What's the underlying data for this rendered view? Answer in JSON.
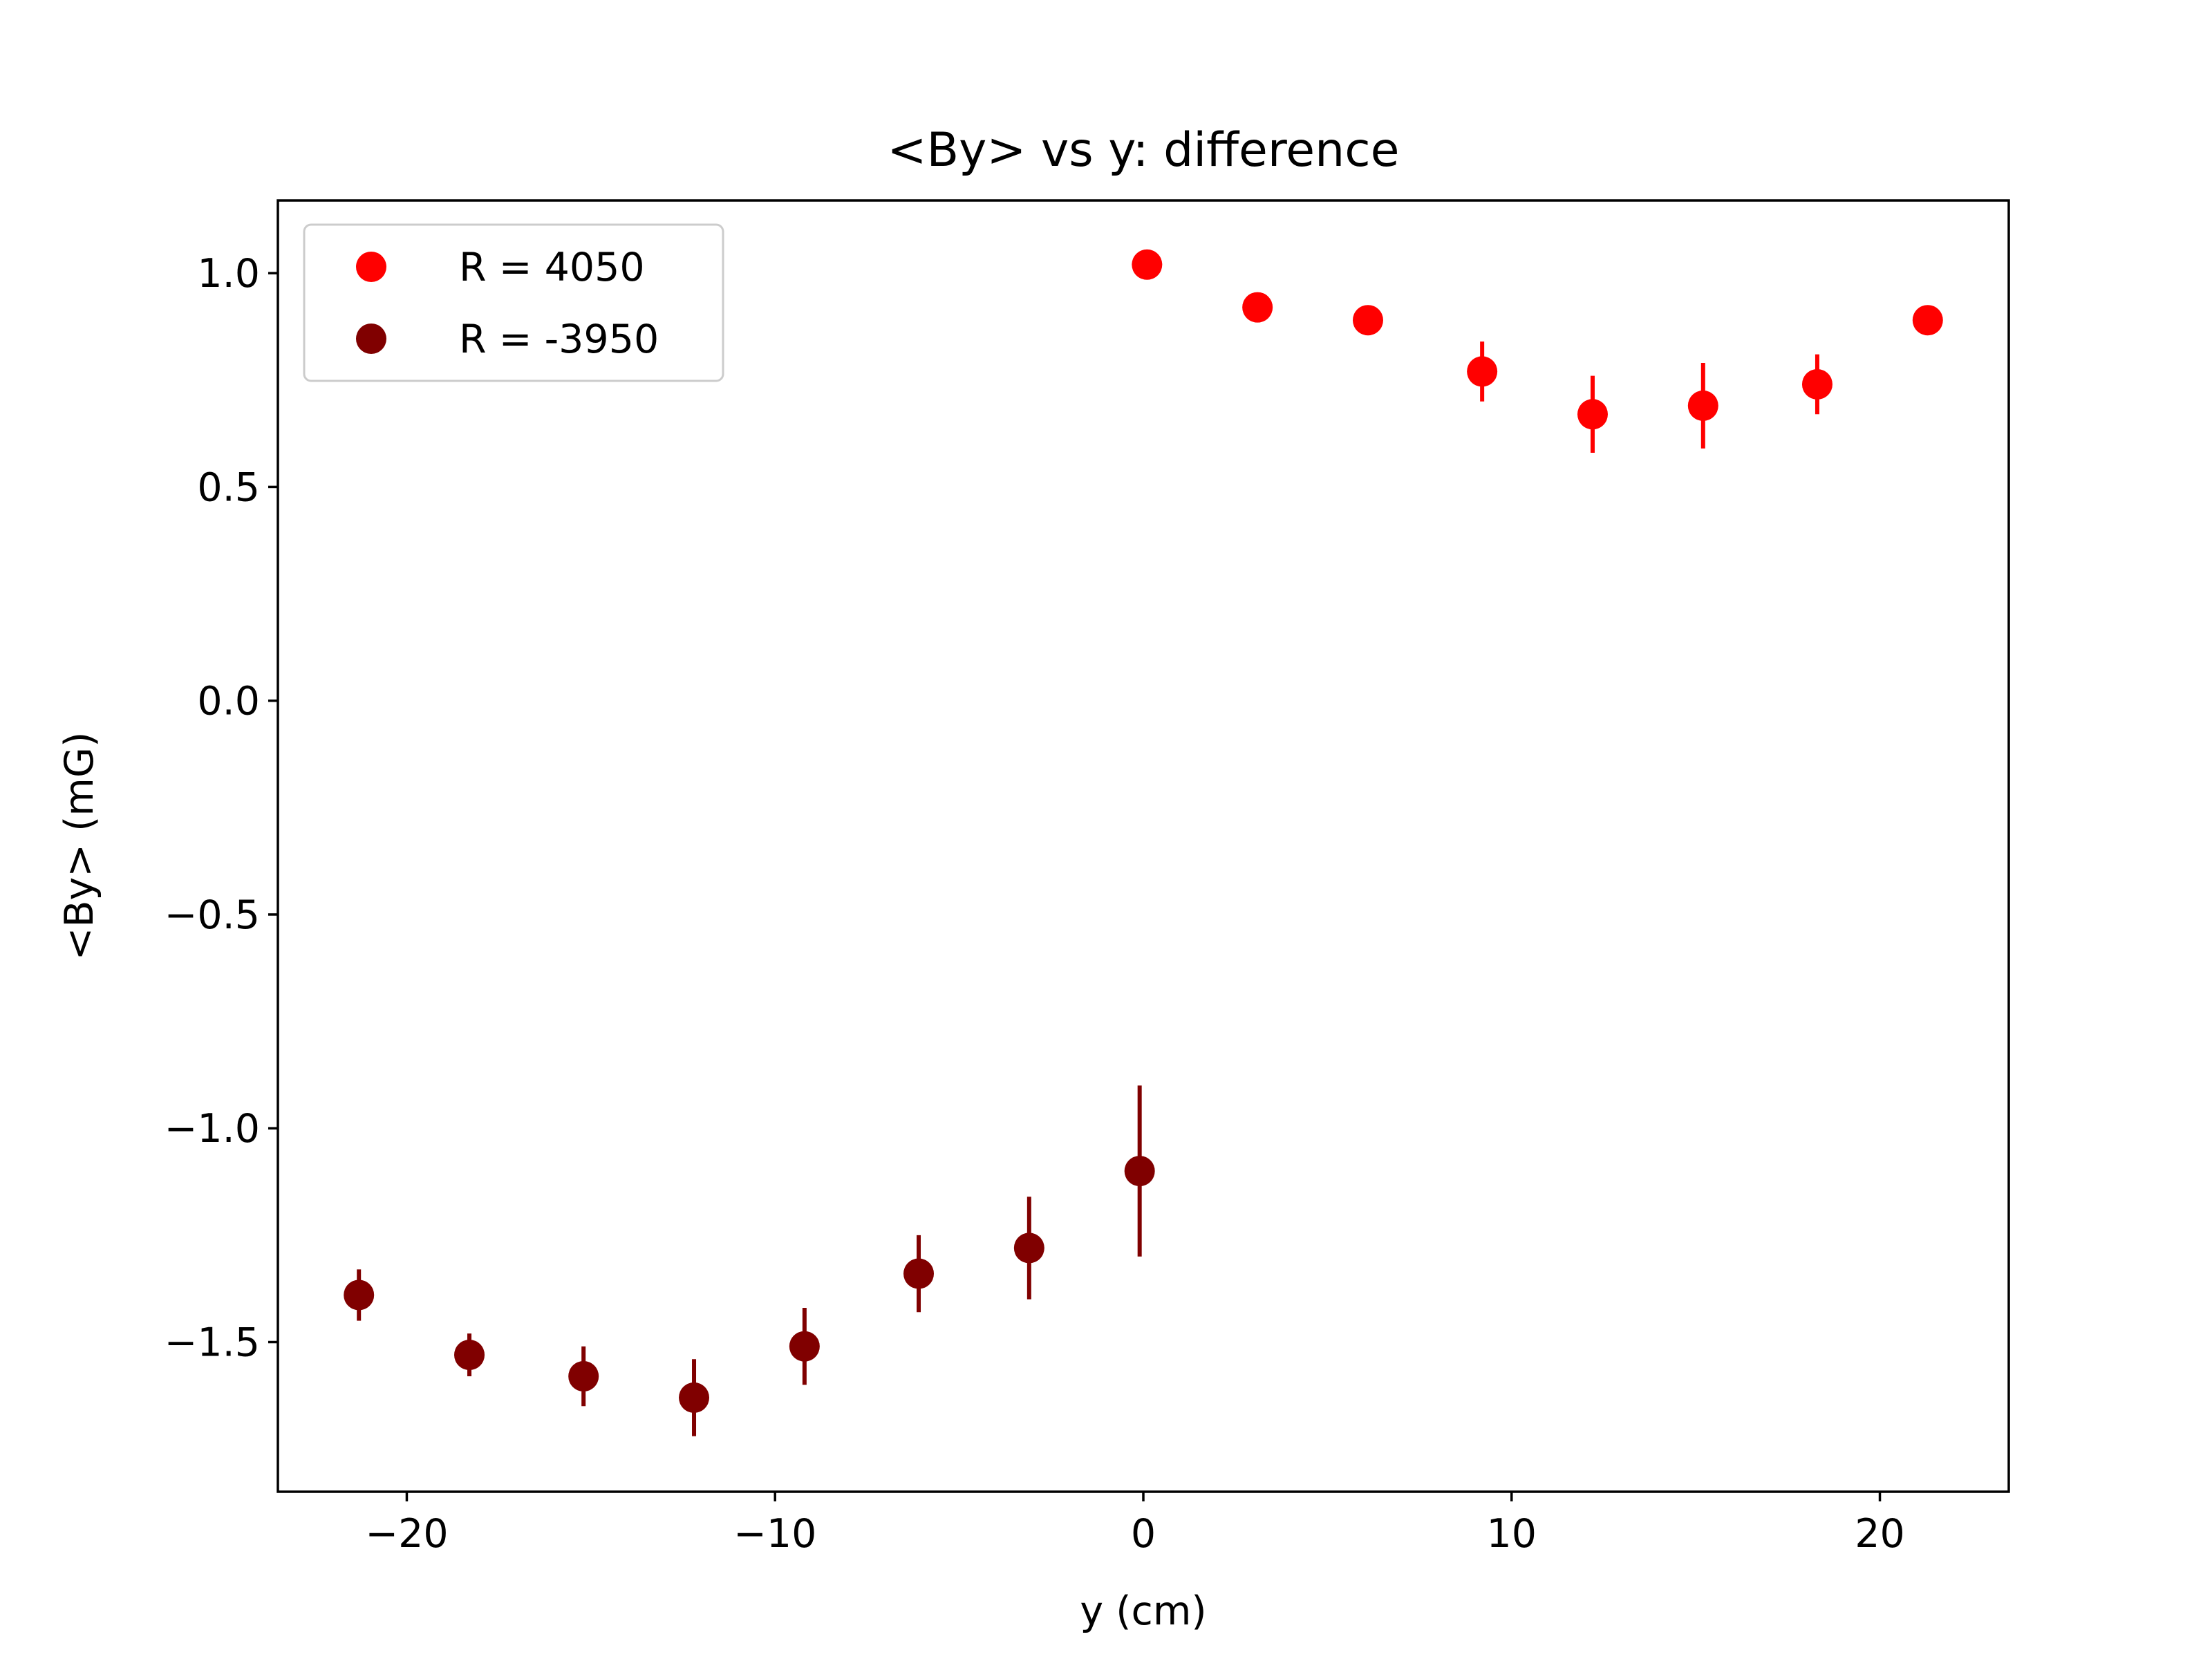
{
  "chart_data": {
    "type": "scatter",
    "title": "<By> vs y: difference",
    "xlabel": "y (cm)",
    "ylabel": "<By> (mG)",
    "xlim": [
      -23.5,
      23.5
    ],
    "ylim": [
      -1.85,
      1.17
    ],
    "xticks": [
      -20,
      -10,
      0,
      10,
      20
    ],
    "xtick_labels": [
      "−20",
      "−10",
      "0",
      "10",
      "20"
    ],
    "yticks": [
      1.0,
      0.5,
      0.0,
      -0.5,
      -1.0,
      -1.5
    ],
    "ytick_labels": [
      "1.0",
      "0.5",
      "0.0",
      "−0.5",
      "−1.0",
      "−1.5"
    ],
    "grid": false,
    "legend_position": "top-left",
    "series": [
      {
        "name": "R = 4050",
        "color": "#ff0000",
        "points": [
          {
            "x": 0.1,
            "y": 1.02,
            "err": 0.0
          },
          {
            "x": 3.1,
            "y": 0.92,
            "err": 0.0
          },
          {
            "x": 6.1,
            "y": 0.89,
            "err": 0.0
          },
          {
            "x": 9.2,
            "y": 0.77,
            "err": 0.07
          },
          {
            "x": 12.2,
            "y": 0.67,
            "err": 0.09
          },
          {
            "x": 15.2,
            "y": 0.69,
            "err": 0.1
          },
          {
            "x": 18.3,
            "y": 0.74,
            "err": 0.07
          },
          {
            "x": 21.3,
            "y": 0.89,
            "err": 0.0
          }
        ]
      },
      {
        "name": "R = -3950",
        "color": "#800000",
        "points": [
          {
            "x": -21.3,
            "y": -1.39,
            "err": 0.06
          },
          {
            "x": -18.3,
            "y": -1.53,
            "err": 0.05
          },
          {
            "x": -15.2,
            "y": -1.58,
            "err": 0.07
          },
          {
            "x": -12.2,
            "y": -1.63,
            "err": 0.09
          },
          {
            "x": -9.2,
            "y": -1.51,
            "err": 0.09
          },
          {
            "x": -6.1,
            "y": -1.34,
            "err": 0.09
          },
          {
            "x": -3.1,
            "y": -1.28,
            "err": 0.12
          },
          {
            "x": -0.1,
            "y": -1.1,
            "err": 0.2
          }
        ]
      }
    ]
  }
}
